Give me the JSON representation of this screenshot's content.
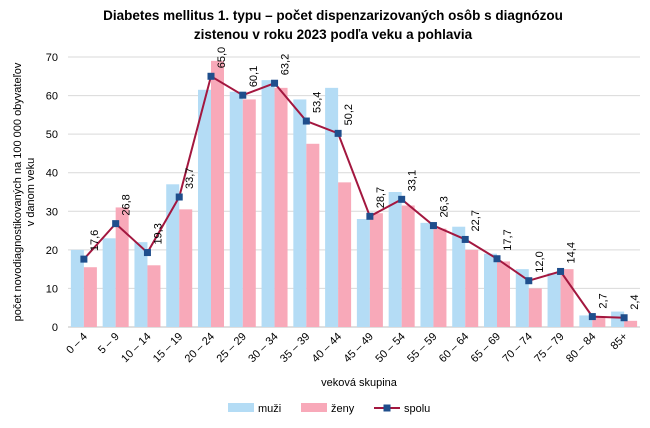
{
  "chart_data": {
    "type": "bar",
    "title": [
      "Diabetes mellitus 1. typu – počet dispenzarizovaných osôb s diagnózou",
      "zistenou v roku 2023 podľa veku a pohlavia"
    ],
    "ylabel": [
      "počet novodiagnostikovaných na 100 000 obyvateľov",
      "v danom veku"
    ],
    "xlabel": "veková skupina",
    "categories": [
      "0 – 4",
      "5 – 9",
      "10 – 14",
      "15 – 19",
      "20 – 24",
      "25 – 29",
      "30 – 34",
      "35 – 39",
      "40 – 44",
      "45 – 49",
      "50 – 54",
      "55 – 59",
      "60 – 64",
      "65 – 69",
      "70 – 74",
      "75 – 79",
      "80 – 84",
      "85+"
    ],
    "series": [
      {
        "name": "muži",
        "type": "bar",
        "color": "#b4dcf5",
        "values": [
          20,
          23,
          22,
          37,
          61.5,
          61,
          64,
          59,
          62,
          28,
          35,
          27,
          26,
          19,
          15,
          14,
          3,
          4
        ]
      },
      {
        "name": "ženy",
        "type": "bar",
        "color": "#f8a9b9",
        "values": [
          15.5,
          31,
          16,
          30.5,
          69,
          59,
          62,
          47.5,
          37.5,
          29.5,
          31.5,
          25.5,
          20,
          17,
          10,
          15,
          2.7,
          1.6
        ]
      },
      {
        "name": "spolu",
        "type": "line",
        "color": "#a3173f",
        "marker_color": "#1f4e8c",
        "values": [
          17.6,
          26.8,
          19.3,
          33.7,
          65.0,
          60.1,
          63.2,
          53.4,
          50.2,
          28.7,
          33.1,
          26.3,
          22.7,
          17.7,
          12.0,
          14.4,
          2.7,
          2.4
        ],
        "value_labels": [
          "17,6",
          "26,8",
          "19,3",
          "33,7",
          "65,0",
          "60,1",
          "63,2",
          "53,4",
          "50,2",
          "28,7",
          "33,1",
          "26,3",
          "22,7",
          "17,7",
          "12,0",
          "14,4",
          "2,7",
          "2,4"
        ]
      }
    ],
    "ylim": [
      0,
      70
    ],
    "yticks": [
      0,
      10,
      20,
      30,
      40,
      50,
      60,
      70
    ],
    "grid": true,
    "legend": "bottom"
  }
}
